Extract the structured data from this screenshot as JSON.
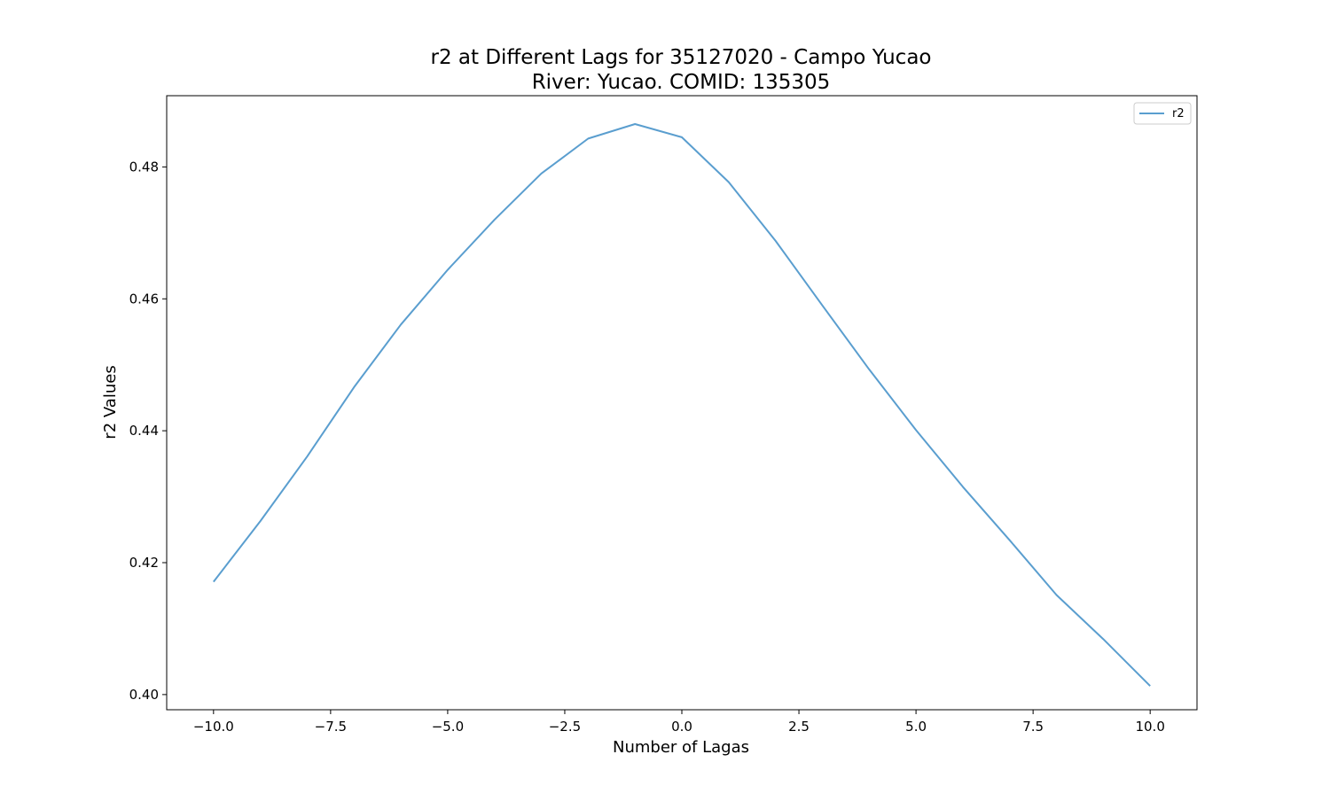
{
  "chart_data": {
    "type": "line",
    "title_line1": "r2 at Different Lags for 35127020 - Campo Yucao",
    "title_line2": "River: Yucao. COMID: 135305",
    "xlabel": "Number of Lagas",
    "ylabel": "r2 Values",
    "xlim": [
      -11,
      11
    ],
    "ylim": [
      0.3977,
      0.4908
    ],
    "x_ticks": [
      -10.0,
      -7.5,
      -5.0,
      -2.5,
      0.0,
      2.5,
      5.0,
      7.5,
      10.0
    ],
    "x_tick_labels": [
      "−10.0",
      "−7.5",
      "−5.0",
      "−2.5",
      "0.0",
      "2.5",
      "5.0",
      "7.5",
      "10.0"
    ],
    "y_ticks": [
      0.4,
      0.42,
      0.44,
      0.46,
      0.48
    ],
    "y_tick_labels": [
      "0.40",
      "0.42",
      "0.44",
      "0.46",
      "0.48"
    ],
    "grid": false,
    "legend_placement": "top-right",
    "x": [
      -10,
      -9,
      -8,
      -7,
      -6,
      -5,
      -4,
      -3,
      -2,
      -1,
      0,
      1,
      2,
      3,
      4,
      5,
      6,
      7,
      8,
      9,
      10
    ],
    "series": [
      {
        "name": "r2",
        "color": "#5a9ecf",
        "values": [
          0.4171,
          0.4263,
          0.4361,
          0.4466,
          0.4561,
          0.4644,
          0.472,
          0.479,
          0.4843,
          0.4865,
          0.4845,
          0.4777,
          0.4688,
          0.459,
          0.4493,
          0.4401,
          0.4315,
          0.4234,
          0.4151,
          0.4084,
          0.4013
        ]
      }
    ]
  }
}
